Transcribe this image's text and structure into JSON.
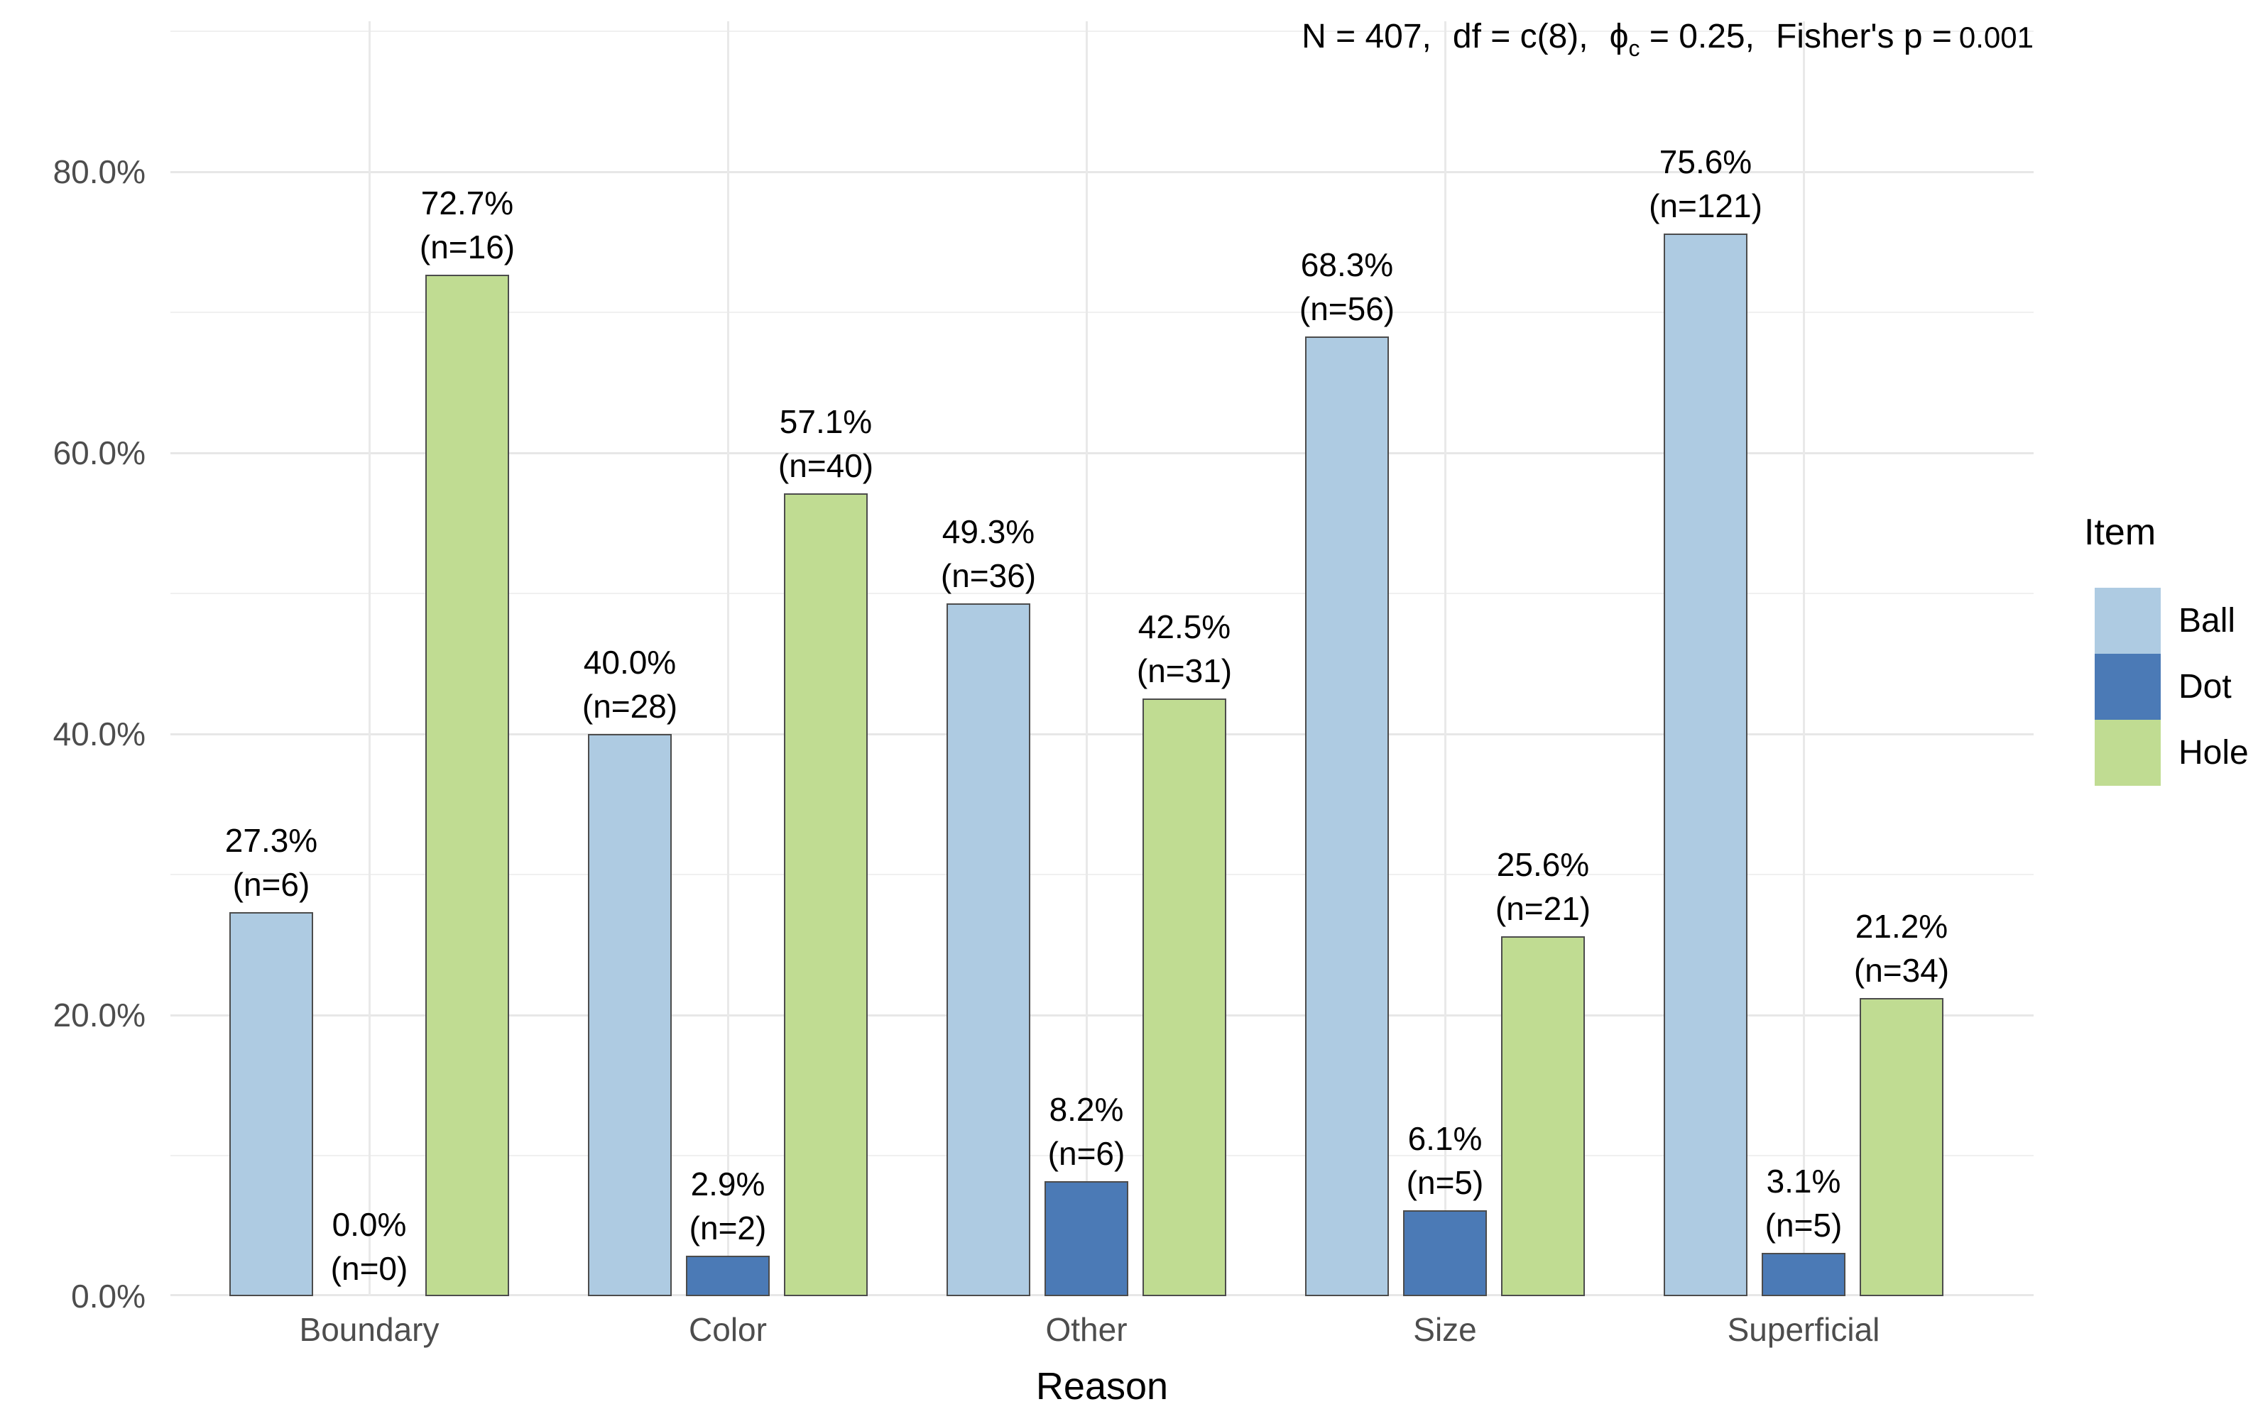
{
  "chart_data": {
    "type": "bar",
    "title": "",
    "xlabel": "Reason",
    "ylabel": "",
    "categories": [
      "Boundary",
      "Color",
      "Other",
      "Size",
      "Superficial"
    ],
    "series": [
      {
        "name": "Ball",
        "color": "#aecbe2",
        "values": [
          27.3,
          40.0,
          49.3,
          68.3,
          75.6
        ],
        "counts": [
          6,
          28,
          36,
          56,
          121
        ]
      },
      {
        "name": "Dot",
        "color": "#4b7ab6",
        "values": [
          0.0,
          2.9,
          8.2,
          6.1,
          3.1
        ],
        "counts": [
          0,
          2,
          6,
          5,
          5
        ]
      },
      {
        "name": "Hole",
        "color": "#c0dc92",
        "values": [
          72.7,
          57.1,
          42.5,
          25.6,
          21.2
        ],
        "counts": [
          16,
          40,
          31,
          21,
          34
        ]
      }
    ],
    "bar_label_format": "{pct}% / (n={count})",
    "y_ticks": [
      {
        "label": "0.0%",
        "value": 0
      },
      {
        "label": "20.0%",
        "value": 20
      },
      {
        "label": "40.0%",
        "value": 40
      },
      {
        "label": "60.0%",
        "value": 60
      },
      {
        "label": "80.0%",
        "value": 80
      }
    ],
    "y_minor_gridlines": [
      10,
      30,
      50,
      70,
      90
    ],
    "ylim": [
      0,
      90.7
    ],
    "grid": true,
    "legend_position": "right",
    "annotation": "N = 407,  df = c(8),  ϕc = 0.25,  Fisher's p = 0.001"
  },
  "annotation": {
    "part_n": "N = 407,",
    "part_df": "df = c(8),",
    "phi_symbol": "ϕ",
    "phi_subscript": "c",
    "phi_value": " = 0.25,",
    "fisher_label": "Fisher's p =",
    "fisher_value": "0.001"
  },
  "legend": {
    "title": "Item",
    "items": [
      {
        "label": "Ball",
        "color": "#aecbe2"
      },
      {
        "label": "Dot",
        "color": "#4b7ab6"
      },
      {
        "label": "Hole",
        "color": "#c0dc92"
      }
    ]
  },
  "axes": {
    "x_title": "Reason",
    "x_tick_labels": [
      "Boundary",
      "Color",
      "Other",
      "Size",
      "Superficial"
    ],
    "y_tick_labels": [
      "0.0%",
      "20.0%",
      "40.0%",
      "60.0%",
      "80.0%"
    ]
  },
  "colors": {
    "background": "#ffffff",
    "grid_major": "#e7e7e7",
    "grid_minor": "#f0f0f0",
    "tick_text": "#4d4d4d",
    "bar_border": "#4c4c4c",
    "label_text": "#000000"
  }
}
